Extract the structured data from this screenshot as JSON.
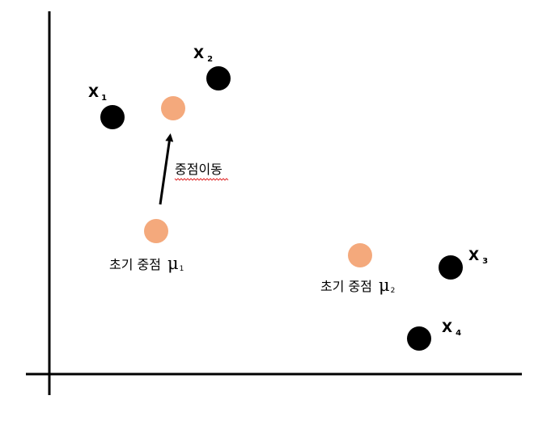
{
  "data_points": [
    {
      "label": "X",
      "index": "1"
    },
    {
      "label": "X",
      "index": "2"
    },
    {
      "label": "X",
      "index": "3"
    },
    {
      "label": "X",
      "index": "4"
    }
  ],
  "centroids": [
    {
      "caption": "초기 중점",
      "symbol": "μ",
      "index": "1"
    },
    {
      "caption": "초기 중점",
      "symbol": "μ",
      "index": "2"
    },
    {
      "caption": "",
      "symbol": "",
      "index": ""
    }
  ],
  "move_label": "중점이동",
  "colors": {
    "data_point": "#000000",
    "centroid": "#f4a97c",
    "axis": "#000000",
    "arrow": "#000000",
    "spellcheck_underline": "#e03030"
  }
}
